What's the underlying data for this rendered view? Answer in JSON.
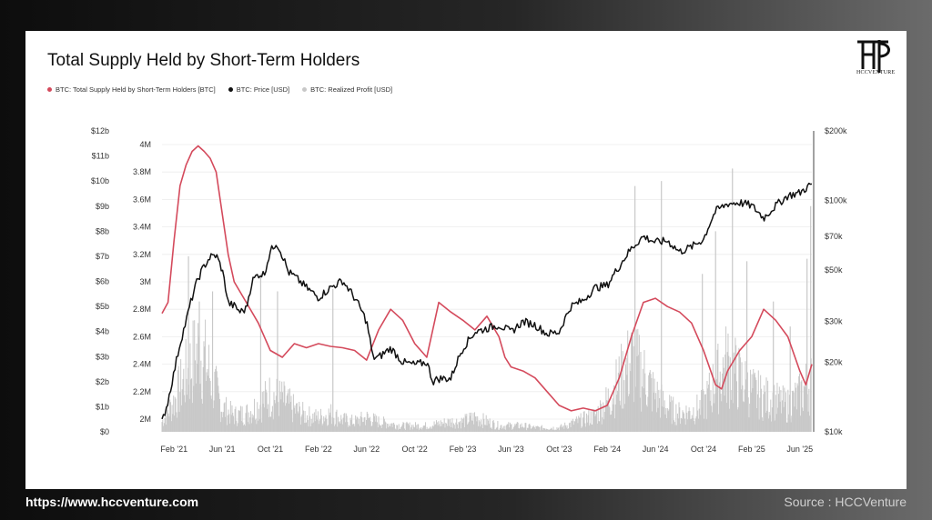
{
  "footer": {
    "url": "https://www.hccventure.com",
    "source": "Source : HCCVenture"
  },
  "brand": {
    "logo_text": "HCCVENTURE"
  },
  "chart_data": {
    "type": "line",
    "title": "Total Supply Held by Short-Term Holders",
    "legend_position": "top-left",
    "grid": "horizontal",
    "series": [
      {
        "name": "BTC: Total Supply Held by Short-Term Holders [BTC]",
        "color": "#d44a5c",
        "axis": "middle"
      },
      {
        "name": "BTC: Price [USD]",
        "color": "#111111",
        "axis": "right",
        "scale": "log"
      },
      {
        "name": "BTC: Realized Profit [USD]",
        "color": "#c8c8c8",
        "axis": "left",
        "kind": "bar"
      }
    ],
    "x_ticks": [
      "Feb '21",
      "Jun '21",
      "Oct '21",
      "Feb '22",
      "Jun '22",
      "Oct '22",
      "Feb '23",
      "Jun '23",
      "Oct '23",
      "Feb '24",
      "Jun '24",
      "Oct '24",
      "Feb '25",
      "Jun '25"
    ],
    "x_range_months": [
      0,
      54
    ],
    "x_tick_months": [
      1,
      5,
      9,
      13,
      17,
      21,
      25,
      29,
      33,
      37,
      41,
      45,
      49,
      53
    ],
    "left_axis": {
      "ticks": [
        "$0",
        "$1b",
        "$2b",
        "$3b",
        "$4b",
        "$5b",
        "$6b",
        "$7b",
        "$8b",
        "$9b",
        "$10b",
        "$11b",
        "$12b"
      ],
      "range": [
        0,
        12
      ]
    },
    "middle_axis": {
      "ticks": [
        "2M",
        "2.2M",
        "2.4M",
        "2.6M",
        "2.8M",
        "3M",
        "3.2M",
        "3.4M",
        "3.6M",
        "3.8M",
        "4M"
      ],
      "range": [
        2.0,
        4.0
      ]
    },
    "right_axis": {
      "ticks": [
        "$10k",
        "$20k",
        "$30k",
        "$50k",
        "$70k",
        "$100k",
        "$200k"
      ],
      "tick_values": [
        10000,
        20000,
        30000,
        50000,
        70000,
        100000,
        200000
      ],
      "range": [
        10000,
        200000
      ]
    },
    "sth_supply_millions": [
      [
        0.0,
        2.77
      ],
      [
        0.5,
        2.85
      ],
      [
        1.0,
        3.3
      ],
      [
        1.5,
        3.7
      ],
      [
        2.0,
        3.85
      ],
      [
        2.5,
        3.95
      ],
      [
        3.0,
        3.99
      ],
      [
        3.5,
        3.95
      ],
      [
        4.0,
        3.9
      ],
      [
        4.5,
        3.8
      ],
      [
        5.0,
        3.5
      ],
      [
        5.5,
        3.2
      ],
      [
        6.0,
        3.0
      ],
      [
        7.0,
        2.85
      ],
      [
        8.0,
        2.7
      ],
      [
        9.0,
        2.5
      ],
      [
        10.0,
        2.45
      ],
      [
        11.0,
        2.55
      ],
      [
        12.0,
        2.52
      ],
      [
        13.0,
        2.55
      ],
      [
        14.0,
        2.53
      ],
      [
        15.0,
        2.52
      ],
      [
        16.0,
        2.5
      ],
      [
        17.0,
        2.43
      ],
      [
        18.0,
        2.65
      ],
      [
        19.0,
        2.8
      ],
      [
        20.0,
        2.72
      ],
      [
        21.0,
        2.55
      ],
      [
        22.0,
        2.45
      ],
      [
        23.0,
        2.85
      ],
      [
        24.0,
        2.78
      ],
      [
        25.0,
        2.72
      ],
      [
        26.0,
        2.65
      ],
      [
        27.0,
        2.75
      ],
      [
        28.0,
        2.6
      ],
      [
        28.5,
        2.45
      ],
      [
        29.0,
        2.38
      ],
      [
        30.0,
        2.35
      ],
      [
        31.0,
        2.3
      ],
      [
        32.0,
        2.2
      ],
      [
        33.0,
        2.1
      ],
      [
        34.0,
        2.06
      ],
      [
        35.0,
        2.08
      ],
      [
        36.0,
        2.06
      ],
      [
        37.0,
        2.1
      ],
      [
        38.0,
        2.3
      ],
      [
        39.0,
        2.6
      ],
      [
        40.0,
        2.85
      ],
      [
        41.0,
        2.88
      ],
      [
        42.0,
        2.82
      ],
      [
        43.0,
        2.78
      ],
      [
        44.0,
        2.7
      ],
      [
        45.0,
        2.5
      ],
      [
        46.0,
        2.25
      ],
      [
        46.5,
        2.22
      ],
      [
        47.0,
        2.35
      ],
      [
        48.0,
        2.5
      ],
      [
        49.0,
        2.6
      ],
      [
        50.0,
        2.8
      ],
      [
        51.0,
        2.72
      ],
      [
        52.0,
        2.6
      ],
      [
        53.0,
        2.35
      ],
      [
        53.5,
        2.25
      ],
      [
        54.0,
        2.4
      ]
    ],
    "price_usd": [
      [
        0.0,
        11000
      ],
      [
        0.5,
        13500
      ],
      [
        1.0,
        18000
      ],
      [
        1.5,
        24000
      ],
      [
        2.0,
        30000
      ],
      [
        2.5,
        38000
      ],
      [
        3.0,
        46000
      ],
      [
        3.5,
        52000
      ],
      [
        4.0,
        57000
      ],
      [
        4.5,
        58000
      ],
      [
        5.0,
        50000
      ],
      [
        5.5,
        36000
      ],
      [
        6.0,
        35000
      ],
      [
        6.5,
        33000
      ],
      [
        7.0,
        34000
      ],
      [
        7.5,
        45000
      ],
      [
        8.0,
        48000
      ],
      [
        8.5,
        48000
      ],
      [
        9.0,
        60000
      ],
      [
        9.5,
        66000
      ],
      [
        10.0,
        58000
      ],
      [
        10.5,
        49000
      ],
      [
        11.0,
        47000
      ],
      [
        12.0,
        42000
      ],
      [
        13.0,
        38000
      ],
      [
        14.0,
        42000
      ],
      [
        15.0,
        45000
      ],
      [
        16.0,
        38000
      ],
      [
        17.0,
        30000
      ],
      [
        17.5,
        21000
      ],
      [
        18.0,
        21000
      ],
      [
        19.0,
        23000
      ],
      [
        20.0,
        20000
      ],
      [
        21.0,
        19500
      ],
      [
        22.0,
        20000
      ],
      [
        22.5,
        16500
      ],
      [
        23.0,
        17000
      ],
      [
        24.0,
        17000
      ],
      [
        25.0,
        23000
      ],
      [
        26.0,
        27000
      ],
      [
        27.0,
        28000
      ],
      [
        28.0,
        29000
      ],
      [
        29.0,
        27000
      ],
      [
        30.0,
        30000
      ],
      [
        31.0,
        29000
      ],
      [
        32.0,
        26500
      ],
      [
        33.0,
        27000
      ],
      [
        34.0,
        35000
      ],
      [
        35.0,
        37000
      ],
      [
        36.0,
        42000
      ],
      [
        37.0,
        43000
      ],
      [
        38.0,
        52000
      ],
      [
        39.0,
        62000
      ],
      [
        40.0,
        70000
      ],
      [
        41.0,
        66000
      ],
      [
        42.0,
        67000
      ],
      [
        43.0,
        60000
      ],
      [
        44.0,
        63000
      ],
      [
        45.0,
        68000
      ],
      [
        46.0,
        90000
      ],
      [
        47.0,
        97000
      ],
      [
        48.0,
        98000
      ],
      [
        49.0,
        95000
      ],
      [
        50.0,
        84000
      ],
      [
        51.0,
        95000
      ],
      [
        52.0,
        105000
      ],
      [
        53.0,
        108000
      ],
      [
        54.0,
        118000
      ]
    ],
    "realized_profit_billions": [
      [
        0.0,
        0.5
      ],
      [
        1.0,
        1.5
      ],
      [
        2.0,
        2.8
      ],
      [
        3.0,
        4.0
      ],
      [
        3.5,
        3.6
      ],
      [
        4.0,
        2.8
      ],
      [
        5.0,
        1.2
      ],
      [
        6.0,
        0.8
      ],
      [
        7.0,
        0.9
      ],
      [
        8.0,
        1.3
      ],
      [
        9.0,
        1.8
      ],
      [
        10.0,
        1.6
      ],
      [
        11.0,
        1.1
      ],
      [
        12.0,
        0.8
      ],
      [
        13.0,
        0.7
      ],
      [
        14.0,
        0.9
      ],
      [
        15.0,
        0.6
      ],
      [
        16.0,
        0.5
      ],
      [
        17.0,
        0.7
      ],
      [
        18.0,
        0.5
      ],
      [
        19.0,
        0.4
      ],
      [
        20.0,
        0.3
      ],
      [
        21.0,
        0.3
      ],
      [
        22.0,
        0.3
      ],
      [
        23.0,
        0.4
      ],
      [
        24.0,
        0.5
      ],
      [
        25.0,
        0.5
      ],
      [
        26.0,
        0.7
      ],
      [
        27.0,
        0.5
      ],
      [
        28.0,
        0.3
      ],
      [
        29.0,
        0.3
      ],
      [
        30.0,
        0.3
      ],
      [
        31.0,
        0.2
      ],
      [
        32.0,
        0.2
      ],
      [
        33.0,
        0.2
      ],
      [
        34.0,
        0.4
      ],
      [
        35.0,
        0.6
      ],
      [
        36.0,
        0.8
      ],
      [
        37.0,
        1.5
      ],
      [
        38.0,
        2.5
      ],
      [
        39.0,
        3.5
      ],
      [
        40.0,
        2.8
      ],
      [
        41.0,
        1.8
      ],
      [
        42.0,
        1.2
      ],
      [
        43.0,
        0.9
      ],
      [
        44.0,
        1.0
      ],
      [
        45.0,
        1.3
      ],
      [
        46.0,
        2.5
      ],
      [
        47.0,
        3.4
      ],
      [
        48.0,
        2.6
      ],
      [
        49.0,
        2.0
      ],
      [
        50.0,
        1.7
      ],
      [
        51.0,
        1.5
      ],
      [
        52.0,
        1.3
      ],
      [
        53.0,
        1.8
      ],
      [
        54.0,
        2.6
      ]
    ],
    "realized_profit_spikes_billions": [
      [
        2.2,
        7.0
      ],
      [
        3.1,
        5.2
      ],
      [
        4.2,
        5.6
      ],
      [
        8.2,
        6.3
      ],
      [
        9.6,
        5.6
      ],
      [
        14.2,
        5.7
      ],
      [
        39.3,
        9.8
      ],
      [
        41.5,
        10.0
      ],
      [
        44.9,
        6.3
      ],
      [
        46.0,
        8.0
      ],
      [
        47.4,
        10.5
      ],
      [
        48.6,
        6.8
      ],
      [
        50.8,
        5.2
      ],
      [
        52.2,
        4.2
      ],
      [
        53.6,
        6.9
      ],
      [
        53.9,
        9.0
      ]
    ]
  }
}
